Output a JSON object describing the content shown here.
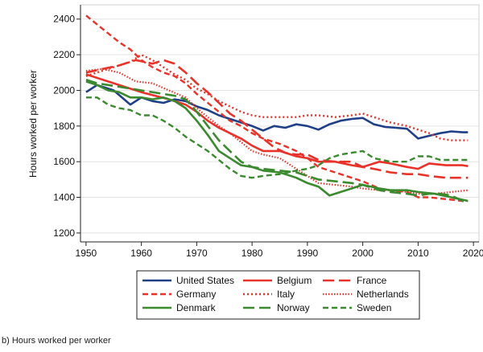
{
  "caption": "b) Hours worked per worker",
  "chart_data": {
    "type": "line",
    "title": "",
    "xlabel": "",
    "ylabel": "Hours worked per worker",
    "xlim": [
      1949,
      2021
    ],
    "ylim": [
      1150,
      2480
    ],
    "xticks": [
      1950,
      1960,
      1970,
      1980,
      1990,
      2000,
      2010,
      2020
    ],
    "yticks": [
      1200,
      1400,
      1600,
      1800,
      2000,
      2200,
      2400
    ],
    "grid": true,
    "legend_position": "bottom",
    "series": [
      {
        "name": "United States",
        "color": "#1f3f86",
        "style": "solid",
        "x": [
          1950,
          1952,
          1955,
          1958,
          1960,
          1962,
          1964,
          1966,
          1968,
          1970,
          1972,
          1974,
          1976,
          1978,
          1980,
          1982,
          1984,
          1986,
          1988,
          1990,
          1992,
          1994,
          1996,
          1998,
          2000,
          2002,
          2004,
          2006,
          2008,
          2010,
          2012,
          2014,
          2016,
          2018,
          2019
        ],
        "y": [
          1990,
          2030,
          2000,
          1920,
          1960,
          1940,
          1930,
          1950,
          1940,
          1910,
          1890,
          1860,
          1840,
          1820,
          1800,
          1775,
          1800,
          1790,
          1810,
          1800,
          1780,
          1810,
          1830,
          1840,
          1845,
          1810,
          1795,
          1790,
          1785,
          1730,
          1745,
          1760,
          1770,
          1765,
          1765
        ]
      },
      {
        "name": "Belgium",
        "color": "#e8332a",
        "style": "solid",
        "x": [
          1950,
          1955,
          1960,
          1965,
          1968,
          1970,
          1972,
          1974,
          1976,
          1978,
          1980,
          1982,
          1985,
          1988,
          1990,
          1992,
          1995,
          1998,
          2000,
          2003,
          2005,
          2008,
          2010,
          2012,
          2015,
          2018,
          2019
        ],
        "y": [
          2090,
          2040,
          1990,
          1950,
          1920,
          1880,
          1830,
          1790,
          1760,
          1730,
          1690,
          1660,
          1660,
          1630,
          1620,
          1600,
          1600,
          1580,
          1570,
          1600,
          1590,
          1570,
          1560,
          1590,
          1580,
          1580,
          1575
        ]
      },
      {
        "name": "France",
        "color": "#e8332a",
        "style": "longdash",
        "x": [
          1950,
          1953,
          1956,
          1959,
          1962,
          1964,
          1966,
          1968,
          1970,
          1972,
          1974,
          1976,
          1978,
          1980,
          1982,
          1984,
          1986,
          1988,
          1990,
          1992,
          1995,
          1998,
          2000,
          2002,
          2005,
          2008,
          2010,
          2012,
          2015,
          2018,
          2019
        ],
        "y": [
          2100,
          2120,
          2140,
          2170,
          2150,
          2170,
          2150,
          2100,
          2040,
          1990,
          1930,
          1870,
          1830,
          1780,
          1730,
          1680,
          1650,
          1640,
          1640,
          1610,
          1600,
          1600,
          1570,
          1560,
          1540,
          1530,
          1530,
          1520,
          1510,
          1510,
          1510
        ]
      },
      {
        "name": "Germany",
        "color": "#e8332a",
        "style": "dash",
        "x": [
          1950,
          1952,
          1954,
          1956,
          1958,
          1960,
          1962,
          1964,
          1966,
          1968,
          1970,
          1972,
          1974,
          1976,
          1978,
          1980,
          1982,
          1985,
          1988,
          1990,
          1992,
          1995,
          1998,
          2000,
          2003,
          2005,
          2008,
          2010,
          2012,
          2015,
          2018,
          2019
        ],
        "y": [
          2420,
          2370,
          2320,
          2270,
          2230,
          2170,
          2130,
          2100,
          2080,
          2040,
          1980,
          1930,
          1880,
          1830,
          1800,
          1760,
          1730,
          1700,
          1660,
          1620,
          1570,
          1540,
          1510,
          1490,
          1450,
          1440,
          1430,
          1400,
          1400,
          1390,
          1380,
          1380
        ]
      },
      {
        "name": "Italy",
        "color": "#e8332a",
        "style": "dot",
        "x": [
          1950,
          1952,
          1954,
          1956,
          1958,
          1960,
          1962,
          1964,
          1966,
          1968,
          1970,
          1972,
          1974,
          1976,
          1978,
          1980,
          1982,
          1985,
          1988,
          1990,
          1992,
          1995,
          1998,
          2000,
          2003,
          2005,
          2008,
          2010,
          2012,
          2014,
          2016,
          2018,
          2019
        ],
        "y": [
          2080,
          2100,
          2120,
          2140,
          2160,
          2200,
          2170,
          2130,
          2090,
          2060,
          2010,
          1980,
          1940,
          1910,
          1880,
          1860,
          1850,
          1850,
          1850,
          1860,
          1860,
          1850,
          1860,
          1870,
          1840,
          1820,
          1800,
          1780,
          1760,
          1730,
          1720,
          1720,
          1720
        ]
      },
      {
        "name": "Netherlands",
        "color": "#e8332a",
        "style": "finedot",
        "x": [
          1950,
          1953,
          1956,
          1959,
          1962,
          1965,
          1968,
          1970,
          1972,
          1974,
          1976,
          1978,
          1980,
          1982,
          1985,
          1988,
          1990,
          1992,
          1995,
          1998,
          2000,
          2003,
          2005,
          2008,
          2010,
          2013,
          2016,
          2019
        ],
        "y": [
          2110,
          2120,
          2100,
          2050,
          2040,
          2000,
          1960,
          1900,
          1850,
          1800,
          1760,
          1710,
          1660,
          1640,
          1620,
          1560,
          1520,
          1480,
          1470,
          1460,
          1450,
          1440,
          1440,
          1430,
          1420,
          1420,
          1430,
          1440
        ]
      },
      {
        "name": "Denmark",
        "color": "#3b8a2f",
        "style": "solid",
        "x": [
          1950,
          1952,
          1954,
          1956,
          1958,
          1960,
          1962,
          1964,
          1966,
          1968,
          1970,
          1972,
          1974,
          1976,
          1978,
          1980,
          1982,
          1985,
          1988,
          1990,
          1992,
          1994,
          1996,
          1998,
          2000,
          2003,
          2005,
          2008,
          2010,
          2013,
          2016,
          2019
        ],
        "y": [
          2050,
          2030,
          2000,
          1990,
          1960,
          1960,
          1950,
          1960,
          1940,
          1900,
          1830,
          1750,
          1660,
          1620,
          1580,
          1570,
          1550,
          1540,
          1510,
          1480,
          1460,
          1410,
          1430,
          1450,
          1470,
          1450,
          1440,
          1440,
          1430,
          1420,
          1400,
          1380
        ]
      },
      {
        "name": "Norway",
        "color": "#3b8a2f",
        "style": "longdash",
        "x": [
          1950,
          1952,
          1954,
          1956,
          1958,
          1960,
          1962,
          1964,
          1966,
          1968,
          1970,
          1972,
          1974,
          1976,
          1978,
          1980,
          1982,
          1985,
          1988,
          1990,
          1992,
          1995,
          1998,
          2000,
          2003,
          2005,
          2008,
          2010,
          2012,
          2014,
          2016,
          2018,
          2019
        ],
        "y": [
          2060,
          2040,
          2030,
          2020,
          2010,
          2000,
          1990,
          1980,
          1970,
          1950,
          1880,
          1800,
          1720,
          1660,
          1600,
          1570,
          1560,
          1550,
          1540,
          1520,
          1500,
          1490,
          1480,
          1470,
          1440,
          1430,
          1420,
          1410,
          1420,
          1420,
          1410,
          1380,
          1370
        ]
      },
      {
        "name": "Sweden",
        "color": "#3b8a2f",
        "style": "dash",
        "x": [
          1950,
          1952,
          1954,
          1956,
          1958,
          1960,
          1962,
          1964,
          1966,
          1968,
          1970,
          1972,
          1974,
          1976,
          1978,
          1980,
          1982,
          1985,
          1988,
          1990,
          1992,
          1994,
          1996,
          1998,
          2000,
          2002,
          2005,
          2008,
          2010,
          2012,
          2014,
          2016,
          2018,
          2019
        ],
        "y": [
          1960,
          1960,
          1920,
          1900,
          1890,
          1860,
          1860,
          1830,
          1790,
          1740,
          1700,
          1660,
          1610,
          1560,
          1520,
          1510,
          1520,
          1530,
          1550,
          1560,
          1580,
          1620,
          1640,
          1650,
          1660,
          1620,
          1600,
          1600,
          1630,
          1630,
          1610,
          1610,
          1610,
          1610
        ]
      }
    ]
  }
}
